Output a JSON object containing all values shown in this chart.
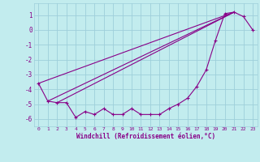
{
  "xlabel": "Windchill (Refroidissement éolien,°C)",
  "xlim": [
    -0.5,
    23.5
  ],
  "ylim": [
    -6.5,
    1.8
  ],
  "yticks": [
    1,
    0,
    -1,
    -2,
    -3,
    -4,
    -5,
    -6
  ],
  "xticks": [
    0,
    1,
    2,
    3,
    4,
    5,
    6,
    7,
    8,
    9,
    10,
    11,
    12,
    13,
    14,
    15,
    16,
    17,
    18,
    19,
    20,
    21,
    22,
    23
  ],
  "bg_color": "#c2ecee",
  "grid_color": "#9ecfda",
  "line_color": "#880088",
  "curve_x": [
    0,
    1,
    2,
    3,
    4,
    5,
    6,
    7,
    8,
    9,
    10,
    11,
    12,
    13,
    14,
    15,
    16,
    17,
    18,
    19,
    20,
    21,
    22,
    23
  ],
  "curve_y": [
    -3.6,
    -4.8,
    -4.9,
    -4.9,
    -5.9,
    -5.5,
    -5.7,
    -5.3,
    -5.7,
    -5.7,
    -5.3,
    -5.7,
    -5.7,
    -5.7,
    -5.3,
    -5.0,
    -4.6,
    -3.8,
    -2.7,
    -0.7,
    1.1,
    1.2,
    0.9,
    0.0
  ],
  "line1_x": [
    0,
    21
  ],
  "line1_y": [
    -3.6,
    1.2
  ],
  "line2_x": [
    1,
    21
  ],
  "line2_y": [
    -4.8,
    1.2
  ],
  "line3_x": [
    2,
    21
  ],
  "line3_y": [
    -4.9,
    1.2
  ]
}
